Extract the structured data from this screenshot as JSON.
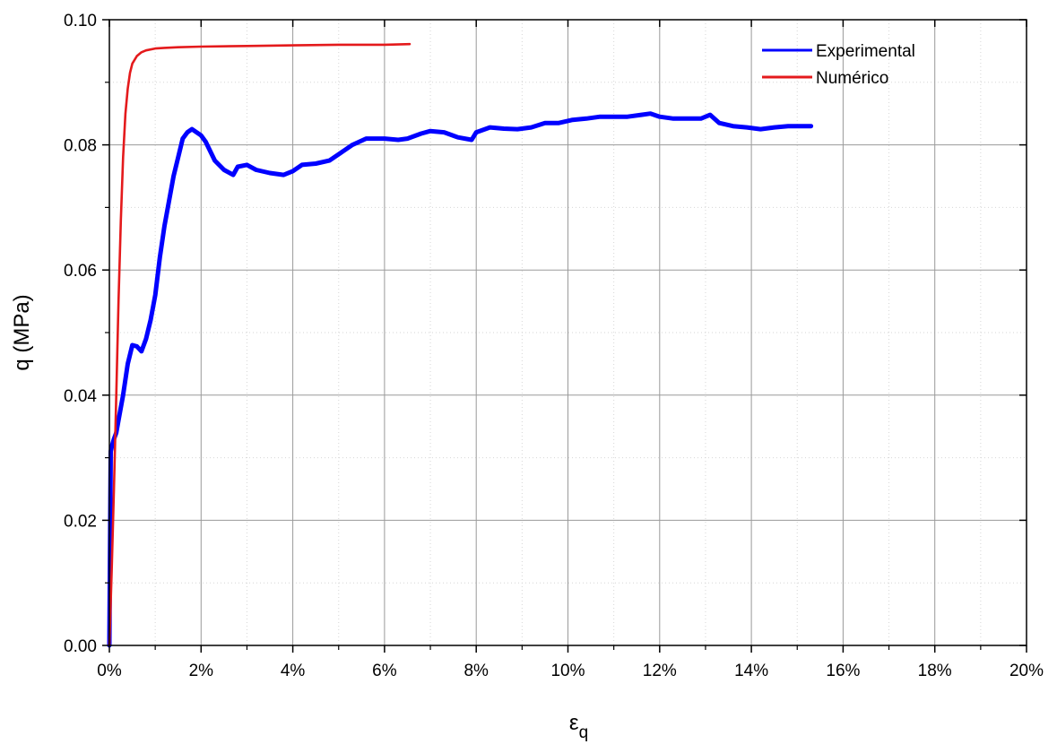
{
  "chart_data": {
    "type": "line",
    "title": "",
    "xlabel": "ε",
    "xlabel_sub": "q",
    "ylabel": "q (MPa)",
    "xlim": [
      0,
      20
    ],
    "ylim": [
      0,
      0.1
    ],
    "x_unit": "%",
    "x_ticks": [
      0,
      2,
      4,
      6,
      8,
      10,
      12,
      14,
      16,
      18,
      20
    ],
    "x_tick_labels": [
      "0%",
      "2%",
      "4%",
      "6%",
      "8%",
      "10%",
      "12%",
      "14%",
      "16%",
      "18%",
      "20%"
    ],
    "y_ticks": [
      0,
      0.02,
      0.04,
      0.06,
      0.08,
      0.1
    ],
    "y_tick_labels": [
      "0.00",
      "0.02",
      "0.04",
      "0.06",
      "0.08",
      "0.10"
    ],
    "grid": true,
    "legend_position": "top-right",
    "series": [
      {
        "name": "Experimental",
        "color": "#0000ff",
        "x": [
          0,
          0.03,
          0.06,
          0.1,
          0.15,
          0.2,
          0.3,
          0.4,
          0.5,
          0.6,
          0.7,
          0.8,
          0.9,
          1.0,
          1.1,
          1.2,
          1.3,
          1.4,
          1.5,
          1.6,
          1.7,
          1.8,
          1.9,
          2.0,
          2.1,
          2.2,
          2.3,
          2.5,
          2.7,
          2.8,
          3.0,
          3.2,
          3.5,
          3.8,
          4.0,
          4.2,
          4.5,
          4.8,
          5.0,
          5.3,
          5.6,
          6.0,
          6.3,
          6.5,
          6.8,
          7.0,
          7.3,
          7.6,
          7.9,
          8.0,
          8.3,
          8.6,
          8.9,
          9.2,
          9.5,
          9.8,
          10.1,
          10.4,
          10.7,
          11.0,
          11.3,
          11.6,
          11.8,
          12.0,
          12.3,
          12.6,
          12.9,
          13.1,
          13.3,
          13.6,
          13.9,
          14.2,
          14.5,
          14.8,
          15.0,
          15.3
        ],
        "y": [
          0.0,
          0.031,
          0.032,
          0.033,
          0.034,
          0.036,
          0.04,
          0.045,
          0.048,
          0.0478,
          0.047,
          0.049,
          0.052,
          0.056,
          0.062,
          0.067,
          0.071,
          0.075,
          0.078,
          0.081,
          0.082,
          0.0825,
          0.082,
          0.0815,
          0.0805,
          0.079,
          0.0775,
          0.076,
          0.0752,
          0.0765,
          0.0768,
          0.076,
          0.0755,
          0.0752,
          0.0758,
          0.0768,
          0.077,
          0.0775,
          0.0785,
          0.08,
          0.081,
          0.081,
          0.0808,
          0.081,
          0.0818,
          0.0822,
          0.082,
          0.0812,
          0.0808,
          0.082,
          0.0828,
          0.0826,
          0.0825,
          0.0828,
          0.0835,
          0.0835,
          0.084,
          0.0842,
          0.0845,
          0.0845,
          0.0845,
          0.0848,
          0.085,
          0.0845,
          0.0842,
          0.0842,
          0.0842,
          0.0848,
          0.0835,
          0.083,
          0.0828,
          0.0825,
          0.0828,
          0.083,
          0.083,
          0.083
        ]
      },
      {
        "name": "Numérico",
        "color": "#e41a1c",
        "x": [
          0,
          0.05,
          0.1,
          0.15,
          0.2,
          0.25,
          0.3,
          0.35,
          0.4,
          0.45,
          0.5,
          0.6,
          0.7,
          0.8,
          1.0,
          1.2,
          1.5,
          2.0,
          3.0,
          4.0,
          5.0,
          6.0,
          6.55
        ],
        "y": [
          0.0,
          0.012,
          0.025,
          0.04,
          0.055,
          0.068,
          0.078,
          0.085,
          0.089,
          0.0915,
          0.093,
          0.0942,
          0.0948,
          0.0951,
          0.0954,
          0.0955,
          0.0956,
          0.0957,
          0.0958,
          0.0959,
          0.096,
          0.096,
          0.0961
        ]
      }
    ]
  }
}
